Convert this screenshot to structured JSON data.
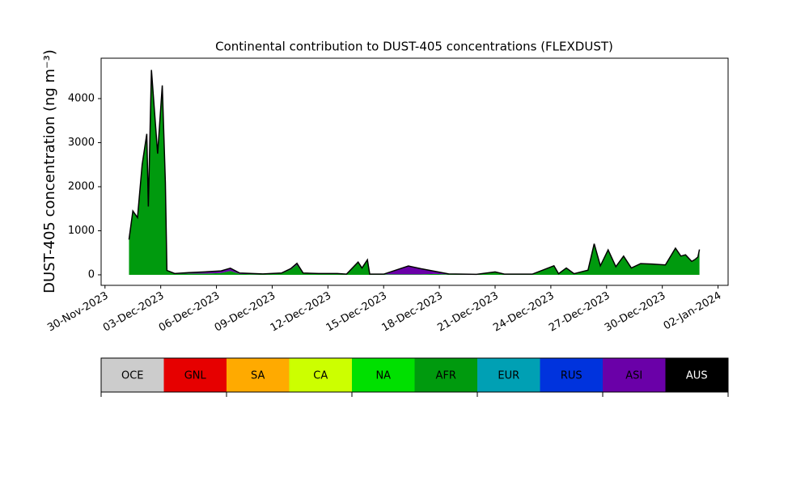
{
  "chart_data": {
    "type": "stacked_area",
    "title": "Continental contribution to DUST-405 concentrations (FLEXDUST)",
    "y_label": "DUST-405 concentration (ng m⁻³)",
    "x": [
      "2023-12-01T07:00",
      "2023-12-01T12:00",
      "2023-12-01T18:00",
      "2023-12-02T00:00",
      "2023-12-02T06:00",
      "2023-12-02T08:00",
      "2023-12-02T12:00",
      "2023-12-02T20:00",
      "2023-12-03T02:00",
      "2023-12-03T06:00",
      "2023-12-03T08:00",
      "2023-12-03T18:00",
      "2023-12-04T12:00",
      "2023-12-05T12:00",
      "2023-12-06T06:00",
      "2023-12-06T18:00",
      "2023-12-07T06:00",
      "2023-12-08T12:00",
      "2023-12-09T12:00",
      "2023-12-10T00:00",
      "2023-12-10T08:00",
      "2023-12-10T16:00",
      "2023-12-11T12:00",
      "2023-12-12T12:00",
      "2023-12-13T00:00",
      "2023-12-13T15:00",
      "2023-12-13T20:00",
      "2023-12-14T03:00",
      "2023-12-14T06:00",
      "2023-12-15T00:00",
      "2023-12-16T08:00",
      "2023-12-17T00:00",
      "2023-12-17T18:00",
      "2023-12-18T12:00",
      "2023-12-20T00:00",
      "2023-12-21T00:00",
      "2023-12-21T12:00",
      "2023-12-23T00:00",
      "2023-12-24T04:00",
      "2023-12-24T10:00",
      "2023-12-24T20:00",
      "2023-12-25T06:00",
      "2023-12-26T00:00",
      "2023-12-26T08:00",
      "2023-12-26T16:00",
      "2023-12-27T02:00",
      "2023-12-27T12:00",
      "2023-12-27T22:00",
      "2023-12-28T08:00",
      "2023-12-28T20:00",
      "2023-12-29T10:00",
      "2023-12-30T04:00",
      "2023-12-30T17:00",
      "2023-12-31T00:00",
      "2023-12-31T06:00",
      "2023-12-31T14:00",
      "2023-12-31T18:00",
      "2023-12-31T22:00",
      "2024-01-01T00:00"
    ],
    "series": [
      {
        "color": "#009a0e",
        "values": [
          800,
          1450,
          1300,
          2500,
          3200,
          1550,
          4650,
          2750,
          4300,
          2100,
          100,
          20,
          30,
          30,
          40,
          90,
          20,
          10,
          30,
          120,
          230,
          30,
          20,
          20,
          10,
          280,
          150,
          330,
          10,
          10,
          10,
          10,
          20,
          10,
          5,
          60,
          10,
          10,
          200,
          20,
          150,
          20,
          100,
          700,
          200,
          560,
          180,
          420,
          150,
          250,
          240,
          220,
          600,
          420,
          450,
          300,
          340,
          400,
          570
        ]
      },
      {
        "color": "#6a00a8",
        "values": [
          0,
          0,
          0,
          0,
          0,
          0,
          0,
          0,
          0,
          0,
          0,
          10,
          20,
          40,
          50,
          60,
          20,
          10,
          10,
          20,
          30,
          10,
          10,
          10,
          5,
          10,
          5,
          10,
          5,
          5,
          190,
          130,
          60,
          10,
          5,
          5,
          5,
          5,
          5,
          5,
          5,
          5,
          5,
          5,
          5,
          5,
          5,
          5,
          5,
          5,
          5,
          5,
          5,
          5,
          5,
          5,
          5,
          5,
          5
        ]
      }
    ],
    "outline_color": "#000000",
    "xlim": [
      "2023-11-29T19:00",
      "2024-01-02T13:00"
    ],
    "xticks": [
      {
        "value": "2023-11-30",
        "label": "30-Nov-2023"
      },
      {
        "value": "2023-12-03",
        "label": "03-Dec-2023"
      },
      {
        "value": "2023-12-06",
        "label": "06-Dec-2023"
      },
      {
        "value": "2023-12-09",
        "label": "09-Dec-2023"
      },
      {
        "value": "2023-12-12",
        "label": "12-Dec-2023"
      },
      {
        "value": "2023-12-15",
        "label": "15-Dec-2023"
      },
      {
        "value": "2023-12-18",
        "label": "18-Dec-2023"
      },
      {
        "value": "2023-12-21",
        "label": "21-Dec-2023"
      },
      {
        "value": "2023-12-24",
        "label": "24-Dec-2023"
      },
      {
        "value": "2023-12-27",
        "label": "27-Dec-2023"
      },
      {
        "value": "2023-12-30",
        "label": "30-Dec-2023"
      },
      {
        "value": "2024-01-02",
        "label": "02-Jan-2024"
      }
    ],
    "ylim": [
      -239,
      4917
    ],
    "yticks": [
      0,
      1000,
      2000,
      3000,
      4000
    ],
    "legend": [
      {
        "name": "OCE",
        "color": "#cccccc"
      },
      {
        "name": "GNL",
        "color": "#e60000"
      },
      {
        "name": "SA",
        "color": "#ffaa00"
      },
      {
        "name": "CA",
        "color": "#ccff00"
      },
      {
        "name": "NA",
        "color": "#00e000"
      },
      {
        "name": "AFR",
        "color": "#009a0e"
      },
      {
        "name": "EUR",
        "color": "#00a0b4"
      },
      {
        "name": "RUS",
        "color": "#0033dd"
      },
      {
        "name": "ASI",
        "color": "#6a00a8"
      },
      {
        "name": "AUS",
        "color": "#000000"
      }
    ]
  }
}
